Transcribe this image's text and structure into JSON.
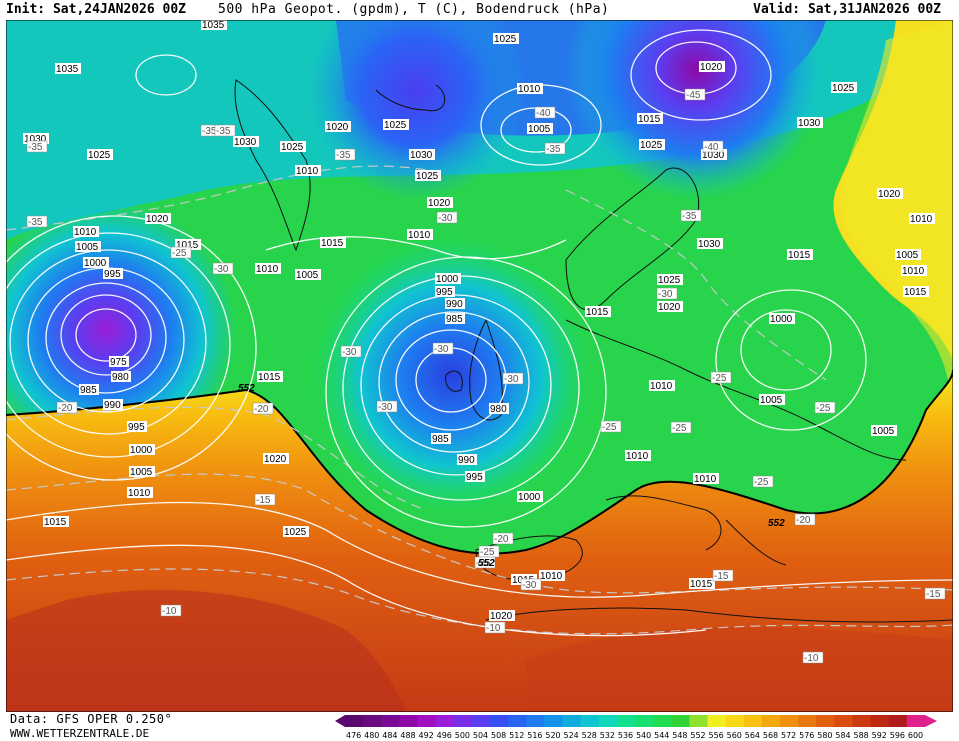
{
  "header": {
    "init": "Init: Sat,24JAN2026 00Z",
    "title": "500 hPa Geopot. (gpdm), T (C), Bodendruck (hPa)",
    "valid": "Valid: Sat,31JAN2026 00Z"
  },
  "footer": {
    "data_source": "Data: GFS OPER 0.250°",
    "site": "WWW.WETTERZENTRALE.DE"
  },
  "legend": {
    "values": [
      "476",
      "480",
      "484",
      "488",
      "492",
      "496",
      "500",
      "504",
      "508",
      "512",
      "516",
      "520",
      "524",
      "528",
      "532",
      "536",
      "540",
      "544",
      "548",
      "552",
      "556",
      "560",
      "564",
      "568",
      "572",
      "576",
      "580",
      "584",
      "588",
      "592",
      "596",
      "600"
    ],
    "colors": [
      "#5a0a6e",
      "#6a0a80",
      "#7a0a94",
      "#8e0aa8",
      "#a010c0",
      "#9a1ed8",
      "#7a2ee8",
      "#5a3ef0",
      "#3a4ef5",
      "#2a64f5",
      "#1e7cf0",
      "#1494e8",
      "#10acdc",
      "#10c4d0",
      "#10d8b8",
      "#14e090",
      "#18e070",
      "#20dc50",
      "#30d438",
      "#90e030",
      "#f0f020",
      "#f8d818",
      "#f8c010",
      "#f4a810",
      "#f09010",
      "#e87810",
      "#e06010",
      "#d84c10",
      "#cc3810",
      "#bc2810",
      "#b01c1c",
      "#e0208c"
    ]
  },
  "map": {
    "contour_552": "552",
    "pressure_labels": [
      {
        "text": "1035"
      },
      {
        "text": "1035"
      },
      {
        "text": "1030"
      },
      {
        "text": "1025"
      },
      {
        "text": "1020"
      },
      {
        "text": "1010"
      },
      {
        "text": "1005"
      },
      {
        "text": "1000"
      },
      {
        "text": "995"
      },
      {
        "text": "1015"
      },
      {
        "text": "975"
      },
      {
        "text": "980"
      },
      {
        "text": "985"
      },
      {
        "text": "990"
      },
      {
        "text": "995"
      },
      {
        "text": "1000"
      },
      {
        "text": "1005"
      },
      {
        "text": "1010"
      },
      {
        "text": "1015"
      },
      {
        "text": "1020"
      },
      {
        "text": "1025"
      },
      {
        "text": "1015"
      },
      {
        "text": "1010"
      },
      {
        "text": "1005"
      },
      {
        "text": "1030"
      },
      {
        "text": "1025"
      },
      {
        "text": "1010"
      },
      {
        "text": "1015"
      },
      {
        "text": "1020"
      },
      {
        "text": "1025"
      },
      {
        "text": "1030"
      },
      {
        "text": "1025"
      },
      {
        "text": "1020"
      },
      {
        "text": "1010"
      },
      {
        "text": "1010"
      },
      {
        "text": "1005"
      },
      {
        "text": "1025"
      },
      {
        "text": "1020"
      },
      {
        "text": "1015"
      },
      {
        "text": "1025"
      },
      {
        "text": "1030"
      },
      {
        "text": "1000"
      },
      {
        "text": "995"
      },
      {
        "text": "990"
      },
      {
        "text": "985"
      },
      {
        "text": "980"
      },
      {
        "text": "985"
      },
      {
        "text": "990"
      },
      {
        "text": "995"
      },
      {
        "text": "1000"
      },
      {
        "text": "1015"
      },
      {
        "text": "1030"
      },
      {
        "text": "1025"
      },
      {
        "text": "1020"
      },
      {
        "text": "1015"
      },
      {
        "text": "1000"
      },
      {
        "text": "1010"
      },
      {
        "text": "1005"
      },
      {
        "text": "1005"
      },
      {
        "text": "1010"
      },
      {
        "text": "1010"
      },
      {
        "text": "1015"
      },
      {
        "text": "1010"
      },
      {
        "text": "1015"
      },
      {
        "text": "1020"
      },
      {
        "text": "1030"
      },
      {
        "text": "1025"
      },
      {
        "text": "1020"
      },
      {
        "text": "1010"
      },
      {
        "text": "1005"
      },
      {
        "text": "1010"
      },
      {
        "text": "1015"
      }
    ],
    "temperature_labels": [
      {
        "text": "-35"
      },
      {
        "text": "-35"
      },
      {
        "text": "-35"
      },
      {
        "text": "-35"
      },
      {
        "text": "-30"
      },
      {
        "text": "-25"
      },
      {
        "text": "-30"
      },
      {
        "text": "-20"
      },
      {
        "text": "-20"
      },
      {
        "text": "-15"
      },
      {
        "text": "-10"
      },
      {
        "text": "-35"
      },
      {
        "text": "-30"
      },
      {
        "text": "-40"
      },
      {
        "text": "-35"
      },
      {
        "text": "-45"
      },
      {
        "text": "-40"
      },
      {
        "text": "-35"
      },
      {
        "text": "-30"
      },
      {
        "text": "-30"
      },
      {
        "text": "-30"
      },
      {
        "text": "-30"
      },
      {
        "text": "-25"
      },
      {
        "text": "-25"
      },
      {
        "text": "-25"
      },
      {
        "text": "-25"
      },
      {
        "text": "-25"
      },
      {
        "text": "-20"
      },
      {
        "text": "-25"
      },
      {
        "text": "-20"
      },
      {
        "text": "-15"
      },
      {
        "text": "-15"
      },
      {
        "text": "-10"
      },
      {
        "text": "-10"
      },
      {
        "text": "-25"
      },
      {
        "text": "-30"
      }
    ]
  }
}
